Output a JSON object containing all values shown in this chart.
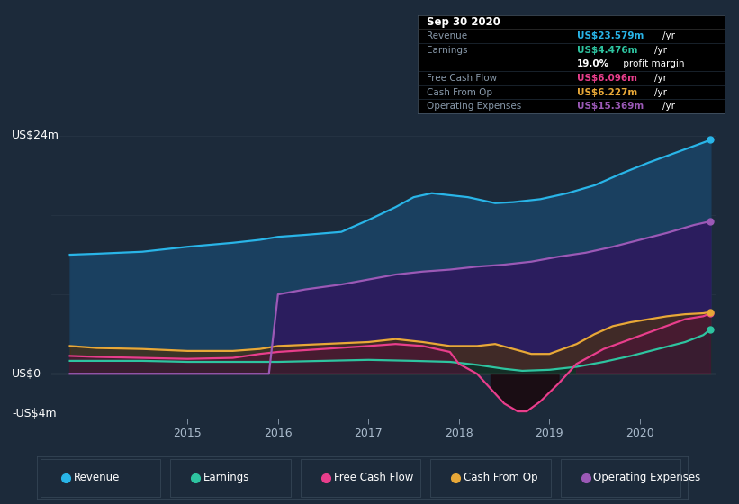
{
  "bg_color": "#1c2a3a",
  "plot_bg_color": "#1c2a3a",
  "ylim": [
    -4.5,
    26
  ],
  "xlim": [
    2013.5,
    2020.85
  ],
  "x_ticks": [
    2015,
    2016,
    2017,
    2018,
    2019,
    2020
  ],
  "y_label_top": "US$24m",
  "y_label_zero": "US$0",
  "y_label_neg": "-US$4m",
  "legend": [
    {
      "label": "Revenue",
      "color": "#29b5e8"
    },
    {
      "label": "Earnings",
      "color": "#2ec4a0"
    },
    {
      "label": "Free Cash Flow",
      "color": "#e83e8c"
    },
    {
      "label": "Cash From Op",
      "color": "#e8a838"
    },
    {
      "label": "Operating Expenses",
      "color": "#9b59b6"
    }
  ],
  "info_box": {
    "title": "Sep 30 2020",
    "rows": [
      {
        "label": "Revenue",
        "value": "US$23.579m",
        "unit": "/yr",
        "color": "#29b5e8"
      },
      {
        "label": "Earnings",
        "value": "US$4.476m",
        "unit": "/yr",
        "color": "#2ec4a0"
      },
      {
        "label": "",
        "value": "19.0%",
        "unit": " profit margin",
        "color": "#ffffff"
      },
      {
        "label": "Free Cash Flow",
        "value": "US$6.096m",
        "unit": "/yr",
        "color": "#e83e8c"
      },
      {
        "label": "Cash From Op",
        "value": "US$6.227m",
        "unit": "/yr",
        "color": "#e8a838"
      },
      {
        "label": "Operating Expenses",
        "value": "US$15.369m",
        "unit": "/yr",
        "color": "#9b59b6"
      }
    ]
  },
  "revenue_x": [
    2013.7,
    2014.0,
    2014.5,
    2015.0,
    2015.5,
    2015.8,
    2016.0,
    2016.3,
    2016.7,
    2017.0,
    2017.3,
    2017.5,
    2017.7,
    2017.9,
    2018.1,
    2018.4,
    2018.6,
    2018.9,
    2019.2,
    2019.5,
    2019.8,
    2020.1,
    2020.4,
    2020.7,
    2020.78
  ],
  "revenue_y": [
    12.0,
    12.1,
    12.3,
    12.8,
    13.2,
    13.5,
    13.8,
    14.0,
    14.3,
    15.5,
    16.8,
    17.8,
    18.2,
    18.0,
    17.8,
    17.2,
    17.3,
    17.6,
    18.2,
    19.0,
    20.2,
    21.3,
    22.3,
    23.3,
    23.579
  ],
  "earnings_x": [
    2013.7,
    2014.0,
    2014.5,
    2015.0,
    2015.5,
    2016.0,
    2016.5,
    2017.0,
    2017.5,
    2017.9,
    2018.2,
    2018.5,
    2018.7,
    2019.0,
    2019.3,
    2019.6,
    2019.9,
    2020.2,
    2020.5,
    2020.7,
    2020.78
  ],
  "earnings_y": [
    1.3,
    1.3,
    1.3,
    1.2,
    1.2,
    1.2,
    1.3,
    1.4,
    1.3,
    1.2,
    0.9,
    0.5,
    0.3,
    0.4,
    0.7,
    1.2,
    1.8,
    2.5,
    3.2,
    3.9,
    4.476
  ],
  "fcf_x": [
    2013.7,
    2014.0,
    2014.5,
    2015.0,
    2015.5,
    2015.8,
    2016.0,
    2016.5,
    2017.0,
    2017.3,
    2017.6,
    2017.9,
    2018.0,
    2018.2,
    2018.35,
    2018.5,
    2018.65,
    2018.75,
    2018.9,
    2019.1,
    2019.3,
    2019.6,
    2019.9,
    2020.2,
    2020.5,
    2020.7,
    2020.78
  ],
  "fcf_y": [
    1.8,
    1.7,
    1.6,
    1.5,
    1.6,
    2.0,
    2.2,
    2.5,
    2.8,
    3.0,
    2.8,
    2.2,
    1.0,
    0.0,
    -1.5,
    -3.0,
    -3.8,
    -3.8,
    -2.8,
    -1.0,
    1.0,
    2.5,
    3.5,
    4.5,
    5.5,
    5.8,
    6.096
  ],
  "cop_x": [
    2013.7,
    2014.0,
    2014.5,
    2015.0,
    2015.5,
    2015.8,
    2016.0,
    2016.5,
    2017.0,
    2017.3,
    2017.6,
    2017.9,
    2018.2,
    2018.4,
    2018.6,
    2018.8,
    2019.0,
    2019.3,
    2019.5,
    2019.7,
    2019.9,
    2020.1,
    2020.3,
    2020.5,
    2020.7,
    2020.78
  ],
  "cop_y": [
    2.8,
    2.6,
    2.5,
    2.3,
    2.3,
    2.5,
    2.8,
    3.0,
    3.2,
    3.5,
    3.2,
    2.8,
    2.8,
    3.0,
    2.5,
    2.0,
    2.0,
    3.0,
    4.0,
    4.8,
    5.2,
    5.5,
    5.8,
    6.0,
    6.1,
    6.227
  ],
  "opex_x": [
    2013.7,
    2015.9,
    2016.0,
    2016.3,
    2016.7,
    2017.0,
    2017.3,
    2017.6,
    2017.9,
    2018.2,
    2018.5,
    2018.8,
    2019.1,
    2019.4,
    2019.7,
    2020.0,
    2020.3,
    2020.6,
    2020.78
  ],
  "opex_y": [
    0.0,
    0.0,
    8.0,
    8.5,
    9.0,
    9.5,
    10.0,
    10.3,
    10.5,
    10.8,
    11.0,
    11.3,
    11.8,
    12.2,
    12.8,
    13.5,
    14.2,
    15.0,
    15.369
  ]
}
